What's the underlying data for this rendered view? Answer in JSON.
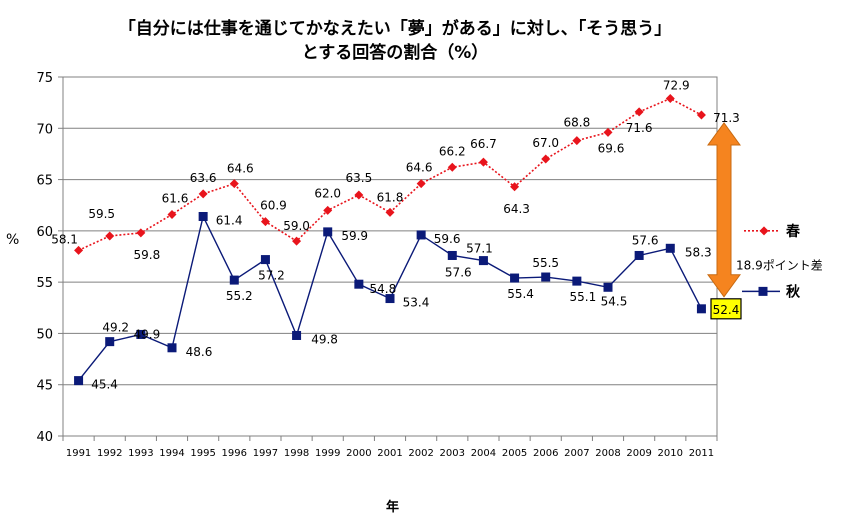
{
  "title_line1": "「自分には仕事を通じてかなえたい「夢」がある」に対し、「そう思う」",
  "title_line2": "とする回答の割合（%）",
  "chart_data": {
    "type": "line",
    "title": "「自分には仕事を通じてかなえたい「夢」がある」に対し、「そう思う」とする回答の割合（%）",
    "xlabel": "年",
    "ylabel": "%",
    "ylim": [
      40,
      75
    ],
    "yticks": [
      "40",
      "45",
      "50",
      "55",
      "60",
      "65",
      "70",
      "75"
    ],
    "grid": true,
    "categories": [
      "1991",
      "1992",
      "1993",
      "1994",
      "1995",
      "1996",
      "1997",
      "1998",
      "1999",
      "2000",
      "2001",
      "2002",
      "2003",
      "2004",
      "2005",
      "2006",
      "2007",
      "2008",
      "2009",
      "2010",
      "2011"
    ],
    "series": [
      {
        "name": "春",
        "color": "#e8141c",
        "marker": "diamond",
        "line_style": "dotted",
        "values": [
          58.1,
          59.5,
          59.8,
          61.6,
          63.6,
          64.6,
          60.9,
          59.0,
          62.0,
          63.5,
          61.8,
          64.6,
          66.2,
          66.7,
          64.3,
          67.0,
          68.8,
          69.6,
          71.6,
          72.9,
          71.3
        ],
        "labels": [
          "58.1",
          "59.5",
          "59.8",
          "61.6",
          "63.6",
          "64.6",
          "60.9",
          "59.0",
          "62.0",
          "63.5",
          "61.8",
          "64.6",
          "66.2",
          "66.7",
          "64.3",
          "67.0",
          "68.8",
          "69.6",
          "71.6",
          "72.9",
          "71.3"
        ]
      },
      {
        "name": "秋",
        "color": "#0b1a78",
        "marker": "square",
        "line_style": "solid",
        "values": [
          45.4,
          49.2,
          49.9,
          48.6,
          61.4,
          55.2,
          57.2,
          49.8,
          59.9,
          54.8,
          53.4,
          59.6,
          57.6,
          57.1,
          55.4,
          55.5,
          55.1,
          54.5,
          57.6,
          58.3,
          52.4
        ],
        "labels": [
          "45.4",
          "49.2",
          "49.9",
          "48.6",
          "61.4",
          "55.2",
          "57.2",
          "49.8",
          "59.9",
          "54.8",
          "53.4",
          "59.6",
          "57.6",
          "57.1",
          "55.4",
          "55.5",
          "55.1",
          "54.5",
          "57.6",
          "58.3",
          "52.4"
        ]
      }
    ],
    "annotation": {
      "text": "18.9ポイント差",
      "arrow_color": "#f5841f",
      "highlight_label": "52.4",
      "highlight_color": "#ffff00"
    },
    "legend_position": "right"
  }
}
